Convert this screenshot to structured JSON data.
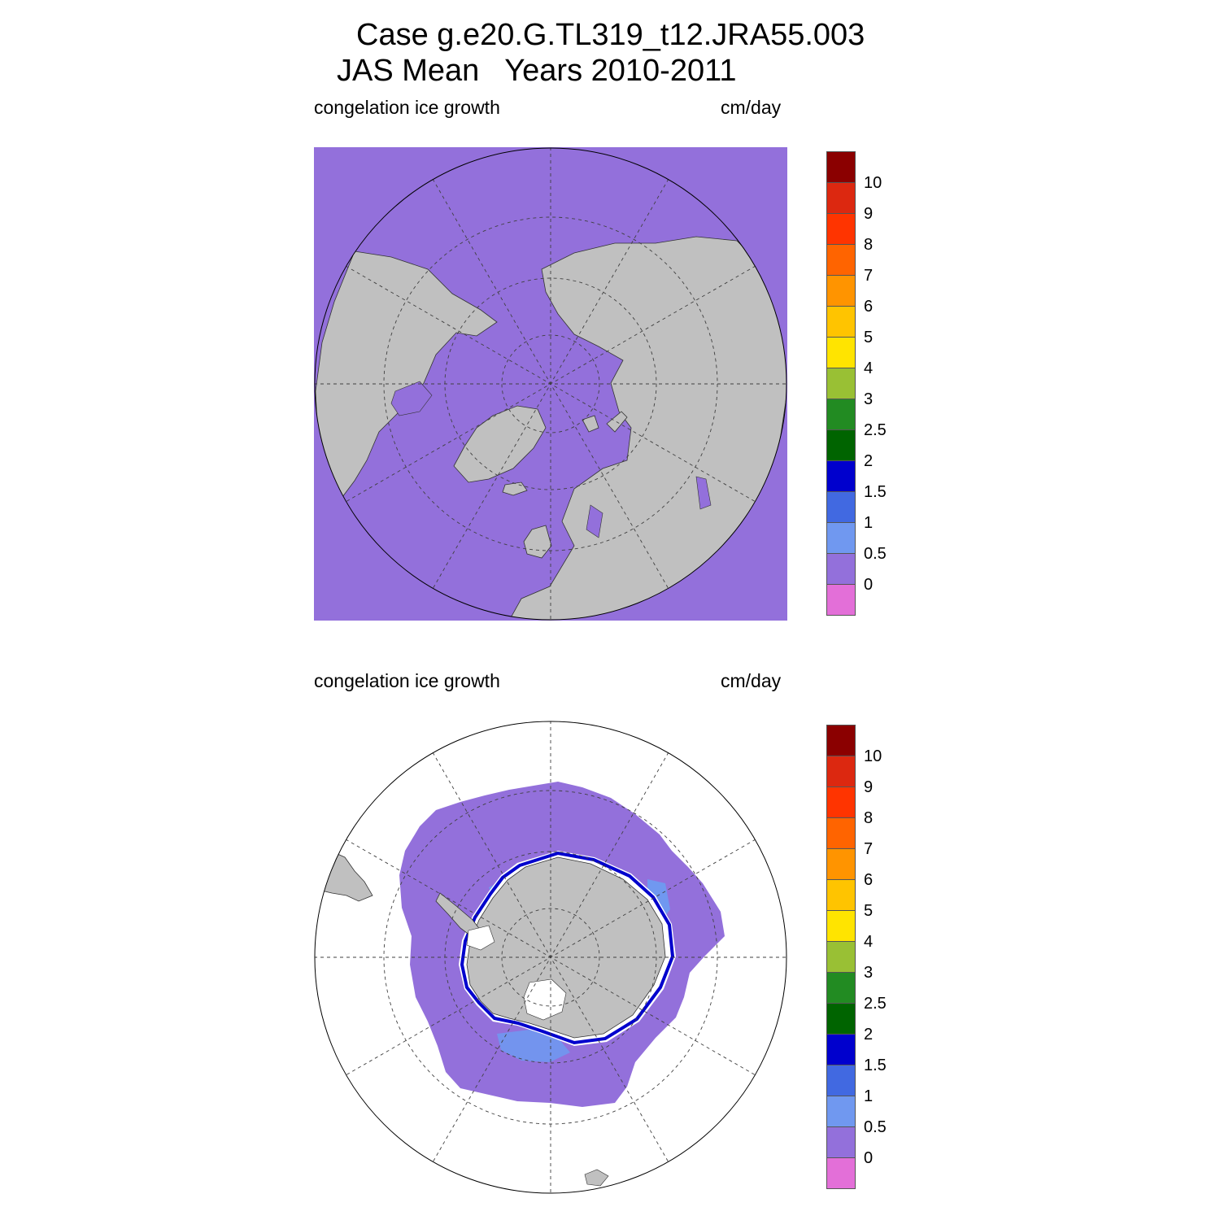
{
  "header": {
    "line1": "Case g.e20.G.TL319_t12.JRA55.003",
    "line2": "JAS Mean   Years 2010-2011"
  },
  "panels": {
    "north": {
      "variable_label": "congelation ice growth",
      "units_label": "cm/day",
      "hemisphere": "north"
    },
    "south": {
      "variable_label": "congelation ice growth",
      "units_label": "cm/day",
      "hemisphere": "south"
    }
  },
  "colorbar": {
    "labels": [
      "10",
      "9",
      "8",
      "7",
      "6",
      "5",
      "4",
      "3",
      "2.5",
      "2",
      "1.5",
      "1",
      "0.5",
      "0"
    ],
    "colors_top_to_bottom": [
      "#8B0000",
      "#DC2810",
      "#FF3400",
      "#FF6400",
      "#FF9400",
      "#FFC400",
      "#FFE400",
      "#99C034",
      "#228B22",
      "#006400",
      "#0000CD",
      "#4169E1",
      "#7098F0",
      "#9370DB",
      "#E36FD8"
    ]
  },
  "colors": {
    "land": "#C0C0C0",
    "ocean_zero": "#9370DB",
    "no_data": "#FFFFFF",
    "grid": "#404040"
  }
}
